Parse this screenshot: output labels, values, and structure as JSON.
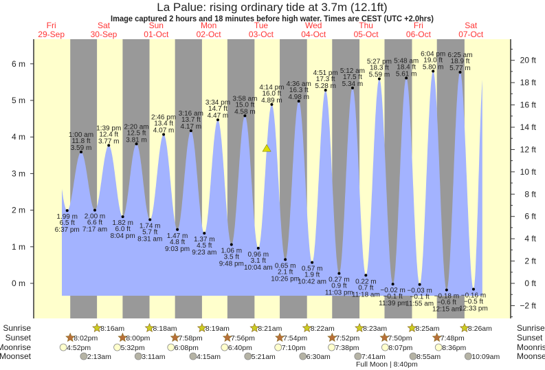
{
  "title": "La Palue: rising  ordinary tide at 3.7m (12.1ft)",
  "subtitle": "Image captured 2 hours and 18 minutes before high water. Times are CEST (UTC +2.0hrs)",
  "colors": {
    "day": "#ffffcc",
    "night": "#999999",
    "water": "#a3b3ff",
    "day_label": "#ff3333",
    "sunrise": "#cccc22",
    "sunset": "#b8703a",
    "moonrise": "#ffffcc",
    "moonset": "#b5b3a5",
    "marker": "#dddd00"
  },
  "chart_data": {
    "type": "area",
    "title": "La Palue: rising  ordinary tide at 3.7m (12.1ft)",
    "days": [
      {
        "dow": "Fri",
        "date": "29-Sep"
      },
      {
        "dow": "Sat",
        "date": "30-Sep"
      },
      {
        "dow": "Sun",
        "date": "01-Oct"
      },
      {
        "dow": "Mon",
        "date": "02-Oct"
      },
      {
        "dow": "Tue",
        "date": "03-Oct"
      },
      {
        "dow": "Wed",
        "date": "04-Oct"
      },
      {
        "dow": "Thu",
        "date": "05-Oct"
      },
      {
        "dow": "Fri",
        "date": "06-Oct"
      },
      {
        "dow": "Sat",
        "date": "07-Oct"
      }
    ],
    "y_left": {
      "unit": "m",
      "range": [
        -0.6,
        7.0
      ],
      "ticks": [
        "6 m",
        "5 m",
        "4 m",
        "3 m",
        "2 m",
        "1 m",
        "0 m"
      ],
      "tick_values": [
        6,
        5,
        4,
        3,
        2,
        1,
        0
      ]
    },
    "y_right": {
      "unit": "ft",
      "ticks": [
        "20 ft",
        "18 ft",
        "16 ft",
        "14 ft",
        "12 ft",
        "10 ft",
        "8 ft",
        "6 ft",
        "4 ft",
        "2 ft",
        "0 ft",
        "−2 ft"
      ],
      "tick_values": [
        20,
        18,
        16,
        14,
        12,
        10,
        8,
        6,
        4,
        2,
        0,
        -2
      ]
    },
    "current": {
      "date": "03-Oct",
      "time": "1:56 pm",
      "m": 3.7,
      "ft": 12.1
    },
    "extremes": [
      {
        "type": "low",
        "date": "29-Sep",
        "time": "6:37 pm",
        "m": "1.99 m",
        "ft": "6.5 ft",
        "v": 1.99
      },
      {
        "type": "high",
        "date": "30-Sep",
        "time": "1:00 am",
        "m": "3.59 m",
        "ft": "11.8 ft",
        "v": 3.59
      },
      {
        "type": "low",
        "date": "30-Sep",
        "time": "7:17 am",
        "m": "2.00 m",
        "ft": "6.6 ft",
        "v": 2.0
      },
      {
        "type": "high",
        "date": "30-Sep",
        "time": "1:39 pm",
        "m": "3.77 m",
        "ft": "12.4 ft",
        "v": 3.77
      },
      {
        "type": "low",
        "date": "30-Sep",
        "time": "8:04 pm",
        "m": "1.82 m",
        "ft": "6.0 ft",
        "v": 1.82
      },
      {
        "type": "high",
        "date": "01-Oct",
        "time": "2:20 am",
        "m": "3.81 m",
        "ft": "12.5 ft",
        "v": 3.81
      },
      {
        "type": "low",
        "date": "01-Oct",
        "time": "8:31 am",
        "m": "1.74 m",
        "ft": "5.7 ft",
        "v": 1.74
      },
      {
        "type": "high",
        "date": "01-Oct",
        "time": "2:46 pm",
        "m": "4.07 m",
        "ft": "13.4 ft",
        "v": 4.07
      },
      {
        "type": "low",
        "date": "01-Oct",
        "time": "9:03 pm",
        "m": "1.47 m",
        "ft": "4.8 ft",
        "v": 1.47
      },
      {
        "type": "high",
        "date": "02-Oct",
        "time": "3:16 am",
        "m": "4.17 m",
        "ft": "13.7 ft",
        "v": 4.17
      },
      {
        "type": "low",
        "date": "02-Oct",
        "time": "9:23 am",
        "m": "1.37 m",
        "ft": "4.5 ft",
        "v": 1.37
      },
      {
        "type": "high",
        "date": "02-Oct",
        "time": "3:34 pm",
        "m": "4.47 m",
        "ft": "14.7 ft",
        "v": 4.47
      },
      {
        "type": "low",
        "date": "02-Oct",
        "time": "9:48 pm",
        "m": "1.06 m",
        "ft": "3.5 ft",
        "v": 1.06
      },
      {
        "type": "high",
        "date": "03-Oct",
        "time": "3:58 am",
        "m": "4.58 m",
        "ft": "15.0 ft",
        "v": 4.58
      },
      {
        "type": "low",
        "date": "03-Oct",
        "time": "10:04 am",
        "m": "0.96 m",
        "ft": "3.1 ft",
        "v": 0.96
      },
      {
        "type": "high",
        "date": "03-Oct",
        "time": "4:14 pm",
        "m": "4.89 m",
        "ft": "16.0 ft",
        "v": 4.89
      },
      {
        "type": "low",
        "date": "03-Oct",
        "time": "10:26 pm",
        "m": "0.65 m",
        "ft": "2.1 ft",
        "v": 0.65
      },
      {
        "type": "high",
        "date": "04-Oct",
        "time": "4:36 am",
        "m": "4.98 m",
        "ft": "16.3 ft",
        "v": 4.98
      },
      {
        "type": "low",
        "date": "04-Oct",
        "time": "10:42 am",
        "m": "0.57 m",
        "ft": "1.9 ft",
        "v": 0.57
      },
      {
        "type": "high",
        "date": "04-Oct",
        "time": "4:51 pm",
        "m": "5.28 m",
        "ft": "17.3 ft",
        "v": 5.28
      },
      {
        "type": "low",
        "date": "04-Oct",
        "time": "11:03 pm",
        "m": "0.27 m",
        "ft": "0.9 ft",
        "v": 0.27
      },
      {
        "type": "high",
        "date": "05-Oct",
        "time": "5:12 am",
        "m": "5.34 m",
        "ft": "17.5 ft",
        "v": 5.34
      },
      {
        "type": "low",
        "date": "05-Oct",
        "time": "11:18 am",
        "m": "0.22 m",
        "ft": "0.7 ft",
        "v": 0.22
      },
      {
        "type": "high",
        "date": "05-Oct",
        "time": "5:27 pm",
        "m": "5.59 m",
        "ft": "18.3 ft",
        "v": 5.59
      },
      {
        "type": "low",
        "date": "05-Oct",
        "time": "11:39 pm",
        "m": "−0.02 m",
        "ft": "−0.1 ft",
        "v": -0.02
      },
      {
        "type": "high",
        "date": "06-Oct",
        "time": "5:48 am",
        "m": "5.61 m",
        "ft": "18.4 ft",
        "v": 5.61
      },
      {
        "type": "low",
        "date": "06-Oct",
        "time": "11:55 am",
        "m": "−0.03 m",
        "ft": "−0.1 ft",
        "v": -0.03
      },
      {
        "type": "high",
        "date": "06-Oct",
        "time": "6:04 pm",
        "m": "5.80 m",
        "ft": "19.0 ft",
        "v": 5.8
      },
      {
        "type": "low",
        "date": "07-Oct",
        "time": "12:15 am",
        "m": "−0.18 m",
        "ft": "−0.6 ft",
        "v": -0.18
      },
      {
        "type": "high",
        "date": "07-Oct",
        "time": "6:25 am",
        "m": "5.77 m",
        "ft": "18.9 ft",
        "v": 5.77
      },
      {
        "type": "low",
        "date": "07-Oct",
        "time": "12:33 pm",
        "m": "−0.16 m",
        "ft": "−0.5 ft",
        "v": -0.16
      }
    ]
  },
  "astro": {
    "rows": [
      {
        "key": "sunrise",
        "label": "Sunrise",
        "icon": "sunrise-star-icon",
        "events": [
          {
            "date": "30-Sep",
            "time": "8:16am"
          },
          {
            "date": "01-Oct",
            "time": "8:18am"
          },
          {
            "date": "02-Oct",
            "time": "8:19am"
          },
          {
            "date": "03-Oct",
            "time": "8:21am"
          },
          {
            "date": "04-Oct",
            "time": "8:22am"
          },
          {
            "date": "05-Oct",
            "time": "8:23am"
          },
          {
            "date": "06-Oct",
            "time": "8:25am"
          },
          {
            "date": "07-Oct",
            "time": "8:26am"
          }
        ]
      },
      {
        "key": "sunset",
        "label": "Sunset",
        "icon": "sunset-star-icon",
        "events": [
          {
            "date": "29-Sep",
            "time": "8:02pm"
          },
          {
            "date": "30-Sep",
            "time": "8:00pm"
          },
          {
            "date": "01-Oct",
            "time": "7:58pm"
          },
          {
            "date": "02-Oct",
            "time": "7:56pm"
          },
          {
            "date": "03-Oct",
            "time": "7:54pm"
          },
          {
            "date": "04-Oct",
            "time": "7:52pm"
          },
          {
            "date": "05-Oct",
            "time": "7:50pm"
          },
          {
            "date": "06-Oct",
            "time": "7:48pm"
          }
        ]
      },
      {
        "key": "moonrise",
        "label": "Moonrise",
        "icon": "moonrise-icon",
        "events": [
          {
            "date": "29-Sep",
            "time": "4:52pm"
          },
          {
            "date": "30-Sep",
            "time": "5:32pm"
          },
          {
            "date": "01-Oct",
            "time": "6:08pm"
          },
          {
            "date": "02-Oct",
            "time": "6:40pm"
          },
          {
            "date": "03-Oct",
            "time": "7:10pm"
          },
          {
            "date": "04-Oct",
            "time": "7:38pm"
          },
          {
            "date": "05-Oct",
            "time": "8:07pm"
          },
          {
            "date": "06-Oct",
            "time": "8:36pm"
          }
        ]
      },
      {
        "key": "moonset",
        "label": "Moonset",
        "icon": "moonset-icon",
        "events": [
          {
            "date": "30-Sep",
            "time": "2:13am"
          },
          {
            "date": "01-Oct",
            "time": "3:11am"
          },
          {
            "date": "02-Oct",
            "time": "4:15am"
          },
          {
            "date": "03-Oct",
            "time": "5:21am"
          },
          {
            "date": "04-Oct",
            "time": "6:30am"
          },
          {
            "date": "05-Oct",
            "time": "7:41am"
          },
          {
            "date": "06-Oct",
            "time": "8:55am"
          },
          {
            "date": "07-Oct",
            "time": "10:09am"
          }
        ]
      }
    ],
    "full_moon": "Full Moon | 8:40pm"
  }
}
